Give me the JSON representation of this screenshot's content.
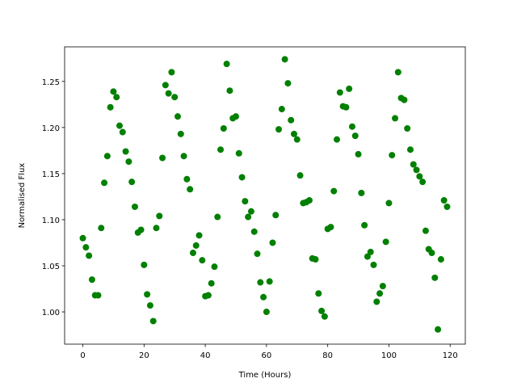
{
  "chart_data": {
    "type": "scatter",
    "xlabel": "Time (Hours)",
    "ylabel": "Normalised Flux",
    "color": "#008000",
    "x": [
      0,
      1,
      2,
      3,
      4,
      5,
      6,
      7,
      8,
      9,
      10,
      11,
      12,
      13,
      14,
      15,
      16,
      17,
      18,
      19,
      20,
      21,
      22,
      23,
      24,
      25,
      26,
      27,
      28,
      29,
      30,
      31,
      32,
      33,
      34,
      35,
      36,
      37,
      38,
      39,
      40,
      41,
      42,
      43,
      44,
      45,
      46,
      47,
      48,
      49,
      50,
      51,
      52,
      53,
      54,
      55,
      56,
      57,
      58,
      59,
      60,
      61,
      62,
      63,
      64,
      65,
      66,
      67,
      68,
      69,
      70,
      71,
      72,
      73,
      74,
      75,
      76,
      77,
      78,
      79,
      80,
      81,
      82,
      83,
      84,
      85,
      86,
      87,
      88,
      89,
      90,
      91,
      92,
      93,
      94,
      95,
      96,
      97,
      98,
      99,
      100,
      101,
      102,
      103,
      104,
      105,
      106,
      107,
      108,
      109,
      110,
      111,
      112,
      113,
      114,
      115,
      116,
      117,
      118,
      119
    ],
    "values": [
      1.08,
      1.07,
      1.061,
      1.035,
      1.018,
      1.018,
      1.091,
      1.14,
      1.169,
      1.222,
      1.239,
      1.233,
      1.202,
      1.195,
      1.174,
      1.163,
      1.141,
      1.114,
      1.086,
      1.089,
      1.051,
      1.019,
      1.007,
      0.99,
      1.091,
      1.104,
      1.167,
      1.246,
      1.237,
      1.26,
      1.233,
      1.212,
      1.193,
      1.169,
      1.144,
      1.133,
      1.064,
      1.072,
      1.083,
      1.056,
      1.017,
      1.018,
      1.031,
      1.049,
      1.103,
      1.176,
      1.199,
      1.269,
      1.24,
      1.21,
      1.212,
      1.172,
      1.146,
      1.12,
      1.103,
      1.109,
      1.087,
      1.063,
      1.032,
      1.016,
      1.0,
      1.033,
      1.075,
      1.105,
      1.198,
      1.22,
      1.274,
      1.248,
      1.208,
      1.193,
      1.187,
      1.148,
      1.118,
      1.119,
      1.121,
      1.058,
      1.057,
      1.02,
      1.001,
      0.995,
      1.09,
      1.092,
      1.131,
      1.187,
      1.238,
      1.223,
      1.222,
      1.242,
      1.201,
      1.191,
      1.171,
      1.129,
      1.094,
      1.06,
      1.065,
      1.051,
      1.011,
      1.02,
      1.028,
      1.076,
      1.118,
      1.17,
      1.21,
      1.26,
      1.232,
      1.23,
      1.199,
      1.176,
      1.16,
      1.154,
      1.147,
      1.141,
      1.088,
      1.068,
      1.064,
      1.037,
      0.981,
      1.057,
      1.121,
      1.114
    ],
    "xlim": [
      -5.95,
      124.95
    ],
    "ylim": [
      0.965,
      1.2875
    ],
    "xticks": [
      0,
      20,
      40,
      60,
      80,
      100,
      120
    ],
    "yticks": [
      {
        "value": 1.0,
        "label": "1.00"
      },
      {
        "value": 1.05,
        "label": "1.05"
      },
      {
        "value": 1.1,
        "label": "1.10"
      },
      {
        "value": 1.15,
        "label": "1.15"
      },
      {
        "value": 1.2,
        "label": "1.20"
      },
      {
        "value": 1.25,
        "label": "1.25"
      }
    ]
  }
}
